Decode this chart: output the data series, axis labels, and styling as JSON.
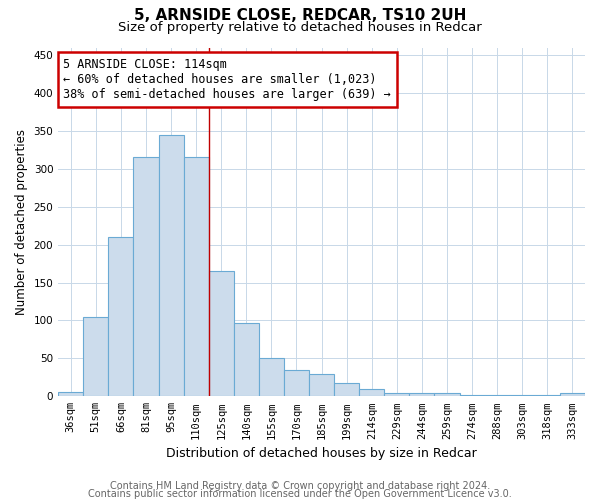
{
  "title1": "5, ARNSIDE CLOSE, REDCAR, TS10 2UH",
  "title2": "Size of property relative to detached houses in Redcar",
  "xlabel": "Distribution of detached houses by size in Redcar",
  "ylabel": "Number of detached properties",
  "categories": [
    "36sqm",
    "51sqm",
    "66sqm",
    "81sqm",
    "95sqm",
    "110sqm",
    "125sqm",
    "140sqm",
    "155sqm",
    "170sqm",
    "185sqm",
    "199sqm",
    "214sqm",
    "229sqm",
    "244sqm",
    "259sqm",
    "274sqm",
    "288sqm",
    "303sqm",
    "318sqm",
    "333sqm"
  ],
  "values": [
    6,
    105,
    210,
    315,
    345,
    315,
    165,
    97,
    50,
    35,
    30,
    18,
    10,
    5,
    5,
    5,
    2,
    2,
    2,
    2,
    4
  ],
  "bar_color": "#ccdcec",
  "bar_edge_color": "#6aaad4",
  "bar_edge_width": 0.8,
  "vline_color": "#c00000",
  "annotation_line1": "5 ARNSIDE CLOSE: 114sqm",
  "annotation_line2": "← 60% of detached houses are smaller (1,023)",
  "annotation_line3": "38% of semi-detached houses are larger (639) →",
  "annotation_box_color": "#ffffff",
  "annotation_box_edge_color": "#cc0000",
  "ylim": [
    0,
    460
  ],
  "yticks": [
    0,
    50,
    100,
    150,
    200,
    250,
    300,
    350,
    400,
    450
  ],
  "footer_line1": "Contains HM Land Registry data © Crown copyright and database right 2024.",
  "footer_line2": "Contains public sector information licensed under the Open Government Licence v3.0.",
  "bg_color": "#ffffff",
  "grid_color": "#c8d8e8",
  "title1_fontsize": 11,
  "title2_fontsize": 9.5,
  "xlabel_fontsize": 9,
  "ylabel_fontsize": 8.5,
  "tick_fontsize": 7.5,
  "annot_fontsize": 8.5,
  "footer_fontsize": 7
}
